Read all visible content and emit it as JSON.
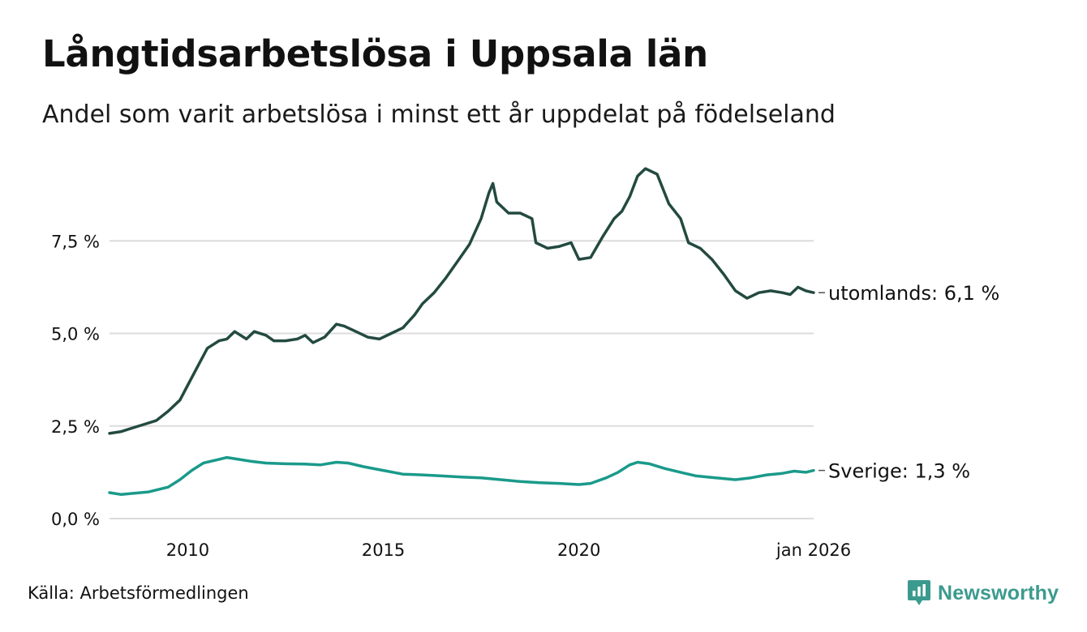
{
  "title": "Långtidsarbetslösa i Uppsala län",
  "subtitle": "Andel som varit arbetslösa i minst ett år uppdelat på födelseland",
  "source": "Källa: Arbetsförmedlingen",
  "brand": "Newsworthy",
  "chart_data": {
    "type": "line",
    "title": "Långtidsarbetslösa i Uppsala län",
    "subtitle": "Andel som varit arbetslösa i minst ett år uppdelat på födelseland",
    "xlabel": "",
    "ylabel": "",
    "xlim": [
      2008.0,
      2026.0
    ],
    "ylim": [
      0,
      10
    ],
    "grid": true,
    "y_ticks": [
      {
        "value": 0,
        "label": "0,0 %"
      },
      {
        "value": 2.5,
        "label": "2,5 %"
      },
      {
        "value": 5,
        "label": "5,0 %"
      },
      {
        "value": 7.5,
        "label": "7,5 %"
      }
    ],
    "x_ticks": [
      {
        "value": 2010,
        "label": "2010"
      },
      {
        "value": 2015,
        "label": "2015"
      },
      {
        "value": 2020,
        "label": "2020"
      },
      {
        "value": 2026,
        "label": "jan 2026"
      }
    ],
    "series": [
      {
        "name": "utomlands",
        "label": "utomlands: 6,1 %",
        "color": "#234a40",
        "points": [
          [
            2008.0,
            2.3
          ],
          [
            2008.3,
            2.35
          ],
          [
            2008.6,
            2.45
          ],
          [
            2008.9,
            2.55
          ],
          [
            2009.2,
            2.65
          ],
          [
            2009.5,
            2.9
          ],
          [
            2009.8,
            3.2
          ],
          [
            2010.0,
            3.6
          ],
          [
            2010.3,
            4.2
          ],
          [
            2010.5,
            4.6
          ],
          [
            2010.8,
            4.8
          ],
          [
            2011.0,
            4.85
          ],
          [
            2011.2,
            5.05
          ],
          [
            2011.5,
            4.85
          ],
          [
            2011.7,
            5.05
          ],
          [
            2012.0,
            4.95
          ],
          [
            2012.2,
            4.8
          ],
          [
            2012.5,
            4.8
          ],
          [
            2012.8,
            4.85
          ],
          [
            2013.0,
            4.95
          ],
          [
            2013.2,
            4.75
          ],
          [
            2013.5,
            4.9
          ],
          [
            2013.8,
            5.25
          ],
          [
            2014.0,
            5.2
          ],
          [
            2014.3,
            5.05
          ],
          [
            2014.6,
            4.9
          ],
          [
            2014.9,
            4.85
          ],
          [
            2015.2,
            5.0
          ],
          [
            2015.5,
            5.15
          ],
          [
            2015.8,
            5.5
          ],
          [
            2016.0,
            5.8
          ],
          [
            2016.3,
            6.1
          ],
          [
            2016.6,
            6.5
          ],
          [
            2016.9,
            6.95
          ],
          [
            2017.2,
            7.4
          ],
          [
            2017.5,
            8.1
          ],
          [
            2017.7,
            8.8
          ],
          [
            2017.8,
            9.05
          ],
          [
            2017.9,
            8.55
          ],
          [
            2018.2,
            8.25
          ],
          [
            2018.5,
            8.25
          ],
          [
            2018.8,
            8.1
          ],
          [
            2018.9,
            7.45
          ],
          [
            2019.2,
            7.3
          ],
          [
            2019.5,
            7.35
          ],
          [
            2019.8,
            7.45
          ],
          [
            2020.0,
            7.0
          ],
          [
            2020.3,
            7.05
          ],
          [
            2020.6,
            7.6
          ],
          [
            2020.9,
            8.1
          ],
          [
            2021.1,
            8.3
          ],
          [
            2021.3,
            8.7
          ],
          [
            2021.5,
            9.25
          ],
          [
            2021.7,
            9.45
          ],
          [
            2022.0,
            9.3
          ],
          [
            2022.3,
            8.5
          ],
          [
            2022.6,
            8.1
          ],
          [
            2022.8,
            7.45
          ],
          [
            2023.1,
            7.3
          ],
          [
            2023.4,
            7.0
          ],
          [
            2023.7,
            6.6
          ],
          [
            2024.0,
            6.15
          ],
          [
            2024.3,
            5.95
          ],
          [
            2024.6,
            6.1
          ],
          [
            2024.9,
            6.15
          ],
          [
            2025.2,
            6.1
          ],
          [
            2025.4,
            6.05
          ],
          [
            2025.6,
            6.25
          ],
          [
            2025.8,
            6.15
          ],
          [
            2026.0,
            6.1
          ]
        ]
      },
      {
        "name": "Sverige",
        "label": "Sverige: 1,3 %",
        "color": "#1a9a8a",
        "points": [
          [
            2008.0,
            0.7
          ],
          [
            2008.3,
            0.65
          ],
          [
            2008.6,
            0.68
          ],
          [
            2009.0,
            0.72
          ],
          [
            2009.5,
            0.85
          ],
          [
            2009.8,
            1.05
          ],
          [
            2010.1,
            1.3
          ],
          [
            2010.4,
            1.5
          ],
          [
            2010.8,
            1.6
          ],
          [
            2011.0,
            1.65
          ],
          [
            2011.3,
            1.6
          ],
          [
            2011.6,
            1.55
          ],
          [
            2012.0,
            1.5
          ],
          [
            2012.5,
            1.48
          ],
          [
            2013.0,
            1.47
          ],
          [
            2013.4,
            1.45
          ],
          [
            2013.8,
            1.52
          ],
          [
            2014.1,
            1.5
          ],
          [
            2014.5,
            1.4
          ],
          [
            2015.0,
            1.3
          ],
          [
            2015.5,
            1.2
          ],
          [
            2016.0,
            1.18
          ],
          [
            2016.5,
            1.15
          ],
          [
            2017.0,
            1.12
          ],
          [
            2017.5,
            1.1
          ],
          [
            2018.0,
            1.05
          ],
          [
            2018.5,
            1.0
          ],
          [
            2019.0,
            0.97
          ],
          [
            2019.5,
            0.95
          ],
          [
            2020.0,
            0.92
          ],
          [
            2020.3,
            0.95
          ],
          [
            2020.7,
            1.1
          ],
          [
            2021.0,
            1.25
          ],
          [
            2021.3,
            1.45
          ],
          [
            2021.5,
            1.52
          ],
          [
            2021.8,
            1.48
          ],
          [
            2022.2,
            1.35
          ],
          [
            2022.6,
            1.25
          ],
          [
            2023.0,
            1.15
          ],
          [
            2023.5,
            1.1
          ],
          [
            2024.0,
            1.05
          ],
          [
            2024.4,
            1.1
          ],
          [
            2024.8,
            1.18
          ],
          [
            2025.2,
            1.22
          ],
          [
            2025.5,
            1.28
          ],
          [
            2025.8,
            1.25
          ],
          [
            2026.0,
            1.3
          ]
        ]
      }
    ]
  }
}
